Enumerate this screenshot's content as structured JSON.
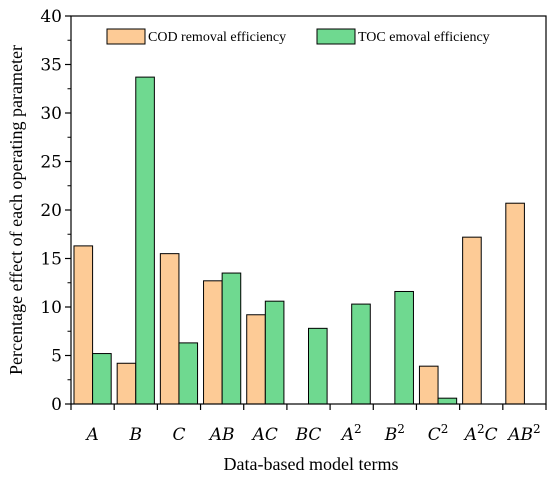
{
  "chart_data": {
    "type": "bar",
    "xlabel": "Data-based model terms",
    "ylabel": "Percentage effect of each operating parameter",
    "ylim": [
      0,
      40
    ],
    "yticks": [
      0,
      5,
      10,
      15,
      20,
      25,
      30,
      35,
      40
    ],
    "grid": false,
    "legend_position": "top-center",
    "categories": [
      {
        "base": "A",
        "sup": "",
        "tail": ""
      },
      {
        "base": "B",
        "sup": "",
        "tail": ""
      },
      {
        "base": "C",
        "sup": "",
        "tail": ""
      },
      {
        "base": "AB",
        "sup": "",
        "tail": ""
      },
      {
        "base": "AC",
        "sup": "",
        "tail": ""
      },
      {
        "base": "BC",
        "sup": "",
        "tail": ""
      },
      {
        "base": "A",
        "sup": "2",
        "tail": ""
      },
      {
        "base": "B",
        "sup": "2",
        "tail": ""
      },
      {
        "base": "C",
        "sup": "2",
        "tail": ""
      },
      {
        "base": "A",
        "sup": "2",
        "tail": "C"
      },
      {
        "base": "AB",
        "sup": "2",
        "tail": ""
      }
    ],
    "series": [
      {
        "name": "COD removal efficiency",
        "color": "#FDCB96",
        "values": [
          16.3,
          4.2,
          15.5,
          12.7,
          9.2,
          0,
          0,
          0,
          3.9,
          17.2,
          20.7
        ]
      },
      {
        "name": "TOC emoval efficiency",
        "color": "#6FD990",
        "values": [
          5.2,
          33.7,
          6.3,
          13.5,
          10.6,
          7.8,
          10.3,
          11.6,
          0.6,
          0,
          0
        ]
      }
    ]
  }
}
